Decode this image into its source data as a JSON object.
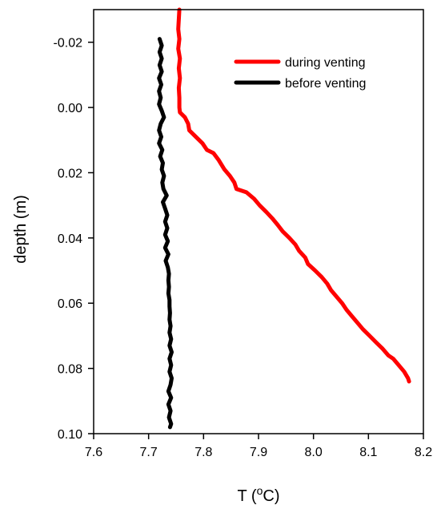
{
  "chart_data": {
    "type": "line",
    "xlabel": "T (",
    "xlabel_sup": "o",
    "xlabel_end": "C)",
    "ylabel": "depth (m)",
    "xlim": [
      7.6,
      8.2
    ],
    "ylim": [
      -0.03,
      0.1
    ],
    "y_inverted": true,
    "x_ticks": [
      "7.6",
      "7.7",
      "7.8",
      "7.9",
      "8.0",
      "8.1",
      "8.2"
    ],
    "x_tick_values": [
      7.6,
      7.7,
      7.8,
      7.9,
      8.0,
      8.1,
      8.2
    ],
    "y_ticks": [
      "-0.02",
      "0.00",
      "0.02",
      "0.04",
      "0.06",
      "0.08",
      "0.10"
    ],
    "y_tick_values": [
      -0.02,
      0.0,
      0.02,
      0.04,
      0.06,
      0.08,
      0.1
    ],
    "grid": false,
    "legend_position": "top-right",
    "series": [
      {
        "name": "during venting",
        "color": "#ff0000",
        "points": [
          [
            7.756,
            -0.03
          ],
          [
            7.755,
            -0.027
          ],
          [
            7.754,
            -0.024
          ],
          [
            7.756,
            -0.021
          ],
          [
            7.754,
            -0.018
          ],
          [
            7.757,
            -0.015
          ],
          [
            7.755,
            -0.012
          ],
          [
            7.757,
            -0.009
          ],
          [
            7.755,
            -0.006
          ],
          [
            7.756,
            -0.003
          ],
          [
            7.756,
            0.0
          ],
          [
            7.757,
            0.0015
          ],
          [
            7.766,
            0.003
          ],
          [
            7.772,
            0.005
          ],
          [
            7.774,
            0.007
          ],
          [
            7.786,
            0.009
          ],
          [
            7.798,
            0.011
          ],
          [
            7.806,
            0.013
          ],
          [
            7.818,
            0.014
          ],
          [
            7.827,
            0.016
          ],
          [
            7.838,
            0.019
          ],
          [
            7.848,
            0.021
          ],
          [
            7.856,
            0.023
          ],
          [
            7.86,
            0.025
          ],
          [
            7.878,
            0.026
          ],
          [
            7.892,
            0.028
          ],
          [
            7.902,
            0.03
          ],
          [
            7.914,
            0.032
          ],
          [
            7.925,
            0.034
          ],
          [
            7.935,
            0.036
          ],
          [
            7.944,
            0.038
          ],
          [
            7.956,
            0.04
          ],
          [
            7.967,
            0.042
          ],
          [
            7.974,
            0.044
          ],
          [
            7.985,
            0.046
          ],
          [
            7.99,
            0.048
          ],
          [
            8.003,
            0.05
          ],
          [
            8.015,
            0.052
          ],
          [
            8.025,
            0.054
          ],
          [
            8.032,
            0.056
          ],
          [
            8.042,
            0.058
          ],
          [
            8.052,
            0.06
          ],
          [
            8.06,
            0.062
          ],
          [
            8.07,
            0.064
          ],
          [
            8.08,
            0.066
          ],
          [
            8.09,
            0.068
          ],
          [
            8.102,
            0.07
          ],
          [
            8.114,
            0.072
          ],
          [
            8.126,
            0.074
          ],
          [
            8.136,
            0.076
          ],
          [
            8.145,
            0.077
          ],
          [
            8.155,
            0.079
          ],
          [
            8.165,
            0.081
          ],
          [
            8.172,
            0.083
          ],
          [
            8.174,
            0.084
          ]
        ]
      },
      {
        "name": "before venting",
        "color": "#000000",
        "points": [
          [
            7.72,
            -0.021
          ],
          [
            7.724,
            -0.019
          ],
          [
            7.72,
            -0.017
          ],
          [
            7.724,
            -0.015
          ],
          [
            7.72,
            -0.013
          ],
          [
            7.724,
            -0.011
          ],
          [
            7.719,
            -0.009
          ],
          [
            7.723,
            -0.007
          ],
          [
            7.719,
            -0.005
          ],
          [
            7.722,
            -0.003
          ],
          [
            7.719,
            -0.001
          ],
          [
            7.724,
            0.001
          ],
          [
            7.728,
            0.003
          ],
          [
            7.722,
            0.005
          ],
          [
            7.719,
            0.007
          ],
          [
            7.723,
            0.009
          ],
          [
            7.719,
            0.011
          ],
          [
            7.725,
            0.013
          ],
          [
            7.721,
            0.015
          ],
          [
            7.726,
            0.017
          ],
          [
            7.724,
            0.019
          ],
          [
            7.728,
            0.021
          ],
          [
            7.725,
            0.023
          ],
          [
            7.727,
            0.025
          ],
          [
            7.733,
            0.027
          ],
          [
            7.726,
            0.029
          ],
          [
            7.73,
            0.031
          ],
          [
            7.734,
            0.033
          ],
          [
            7.73,
            0.035
          ],
          [
            7.734,
            0.037
          ],
          [
            7.73,
            0.039
          ],
          [
            7.735,
            0.041
          ],
          [
            7.73,
            0.043
          ],
          [
            7.736,
            0.045
          ],
          [
            7.731,
            0.047
          ],
          [
            7.735,
            0.049
          ],
          [
            7.737,
            0.051
          ],
          [
            7.736,
            0.053
          ],
          [
            7.737,
            0.055
          ],
          [
            7.736,
            0.057
          ],
          [
            7.738,
            0.059
          ],
          [
            7.738,
            0.061
          ],
          [
            7.739,
            0.063
          ],
          [
            7.738,
            0.065
          ],
          [
            7.74,
            0.067
          ],
          [
            7.738,
            0.069
          ],
          [
            7.741,
            0.071
          ],
          [
            7.738,
            0.073
          ],
          [
            7.742,
            0.075
          ],
          [
            7.738,
            0.077
          ],
          [
            7.741,
            0.079
          ],
          [
            7.738,
            0.081
          ],
          [
            7.742,
            0.083
          ],
          [
            7.74,
            0.085
          ],
          [
            7.736,
            0.087
          ],
          [
            7.741,
            0.089
          ],
          [
            7.736,
            0.091
          ],
          [
            7.74,
            0.093
          ],
          [
            7.737,
            0.095
          ],
          [
            7.741,
            0.097
          ],
          [
            7.739,
            0.098
          ]
        ]
      }
    ]
  }
}
